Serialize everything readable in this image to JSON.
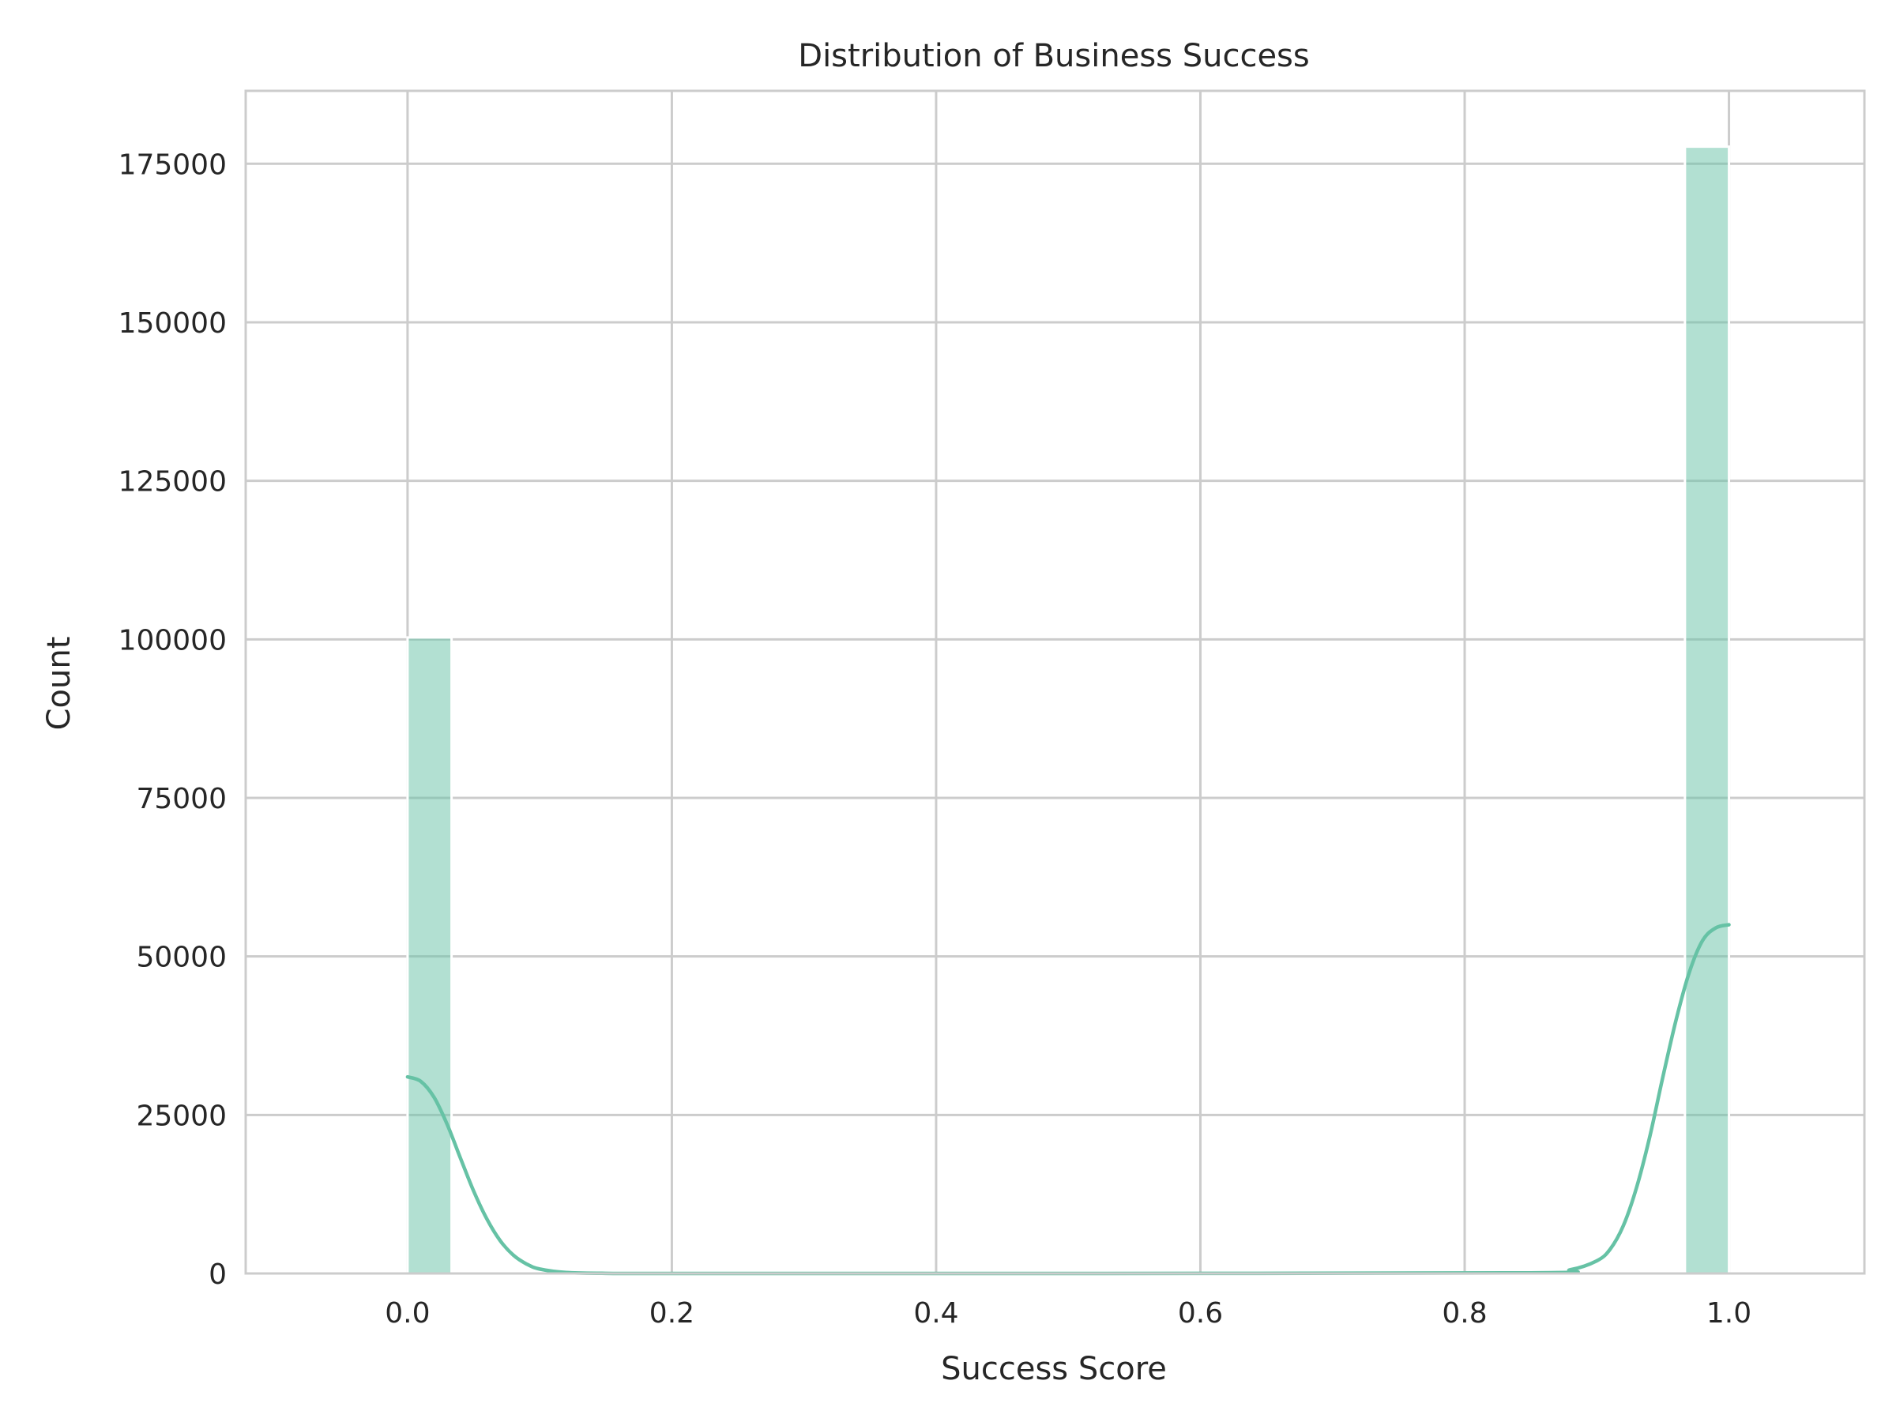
{
  "chart_data": {
    "type": "bar",
    "title": "Distribution of Business Success",
    "xlabel": "Success Score",
    "ylabel": "Count",
    "xlim": [
      -0.1225,
      1.1025
    ],
    "ylim": [
      0,
      186500
    ],
    "xticks": [
      "0.0",
      "0.2",
      "0.4",
      "0.6",
      "0.8",
      "1.0"
    ],
    "xtick_values": [
      0.0,
      0.2,
      0.4,
      0.6,
      0.8,
      1.0
    ],
    "yticks": [
      "0",
      "25000",
      "50000",
      "75000",
      "100000",
      "125000",
      "150000",
      "175000"
    ],
    "ytick_values": [
      0,
      25000,
      50000,
      75000,
      100000,
      125000,
      150000,
      175000
    ],
    "grid": true,
    "bars": [
      {
        "x0": 0.0,
        "x1": 0.0333,
        "value": 100300
      },
      {
        "x0": 0.9667,
        "x1": 1.0,
        "value": 177700
      }
    ],
    "kde": {
      "x": [
        0.0,
        0.01,
        0.02,
        0.03,
        0.04,
        0.05,
        0.06,
        0.07,
        0.08,
        0.09,
        0.1,
        0.12,
        0.15,
        0.2,
        0.5,
        0.85,
        0.88,
        0.9,
        0.91,
        0.92,
        0.93,
        0.94,
        0.95,
        0.96,
        0.97,
        0.98,
        0.99,
        1.0
      ],
      "y": [
        31000,
        30300,
        27800,
        23500,
        18200,
        13000,
        8600,
        5200,
        2900,
        1500,
        700,
        150,
        20,
        0,
        0,
        100,
        600,
        2000,
        3800,
        7500,
        13500,
        21500,
        31000,
        40000,
        47500,
        52500,
        54500,
        55000
      ]
    },
    "colors": {
      "bar_fill": "#66c2a5",
      "kde_line": "#66c2a5",
      "grid": "#cccccc",
      "spine": "#cccccc",
      "text": "#262626"
    }
  }
}
